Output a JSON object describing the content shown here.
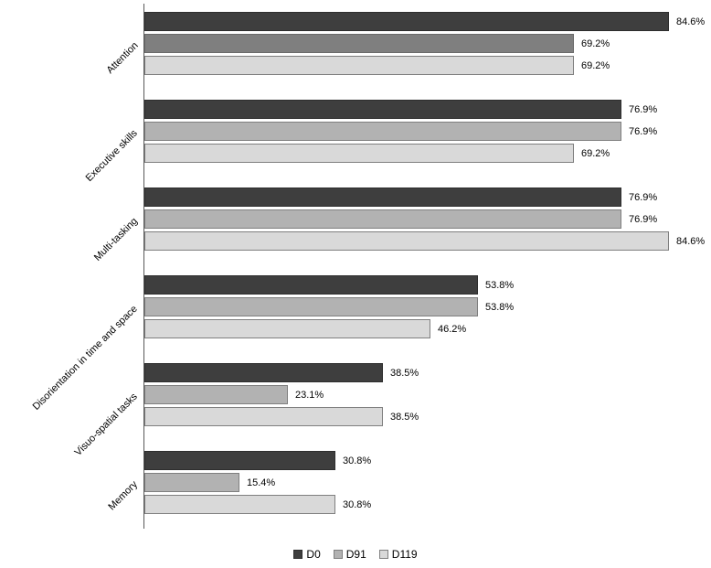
{
  "chart_data": {
    "type": "bar",
    "orientation": "horizontal",
    "title": "",
    "xlabel": "",
    "ylabel": "",
    "grid": false,
    "legend_position": "bottom",
    "value_suffix": "%",
    "xlim": [
      0,
      100
    ],
    "categories": [
      "Attention",
      "Executive skills",
      "Multi-tasking",
      "Disorientation in time and space",
      "Visuo-spatial tasks",
      "Memory"
    ],
    "series": [
      {
        "name": "D0",
        "color": "#3e3e3e",
        "border_color": "#2e2e2e",
        "values": [
          84.6,
          76.9,
          76.9,
          53.8,
          38.5,
          30.8
        ]
      },
      {
        "name": "D91",
        "color": "#b2b2b2",
        "border_color": "#7f7f7f",
        "values": [
          69.2,
          76.9,
          76.9,
          53.8,
          23.1,
          15.4
        ]
      },
      {
        "name": "D119",
        "color": "#d9d9d9",
        "border_color": "#7f7f7f",
        "values": [
          69.2,
          69.2,
          84.6,
          46.2,
          38.5,
          30.8
        ]
      }
    ],
    "bar_color_overrides": [
      {
        "category": "Attention",
        "series": "D91",
        "color": "#7f7f7f",
        "border_color": "#6b6b6b"
      }
    ],
    "data_labels": [
      [
        "84.6%",
        "69.2%",
        "69.2%"
      ],
      [
        "76.9%",
        "76.9%",
        "69.2%"
      ],
      [
        "76.9%",
        "76.9%",
        "84.6%"
      ],
      [
        "53.8%",
        "53.8%",
        "46.2%"
      ],
      [
        "38.5%",
        "23.1%",
        "38.5%"
      ],
      [
        "30.8%",
        "15.4%",
        "30.8%"
      ]
    ],
    "axis_color": "#595959"
  }
}
